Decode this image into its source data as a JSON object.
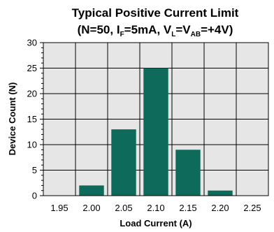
{
  "chart_data": {
    "type": "bar",
    "title": "Typical Positive Current Limit",
    "subtitle_parts": {
      "open": "(N=50, I",
      "sub1": "F",
      "mid1": "=5mA, V",
      "sub2": "L",
      "mid2": "=V",
      "sub3": "AB",
      "close": "=+4V)"
    },
    "xlabel": "Load Current (A)",
    "ylabel": "Device Count (N)",
    "categories": [
      "1.95",
      "2.00",
      "2.05",
      "2.10",
      "2.15",
      "2.20",
      "2.25"
    ],
    "values": [
      0,
      2,
      13,
      25,
      9,
      1,
      0
    ],
    "ylim": [
      0,
      30
    ],
    "yticks": [
      0,
      5,
      10,
      15,
      20,
      25,
      30
    ],
    "grid": true,
    "bar_color": "#0e6b5c"
  }
}
